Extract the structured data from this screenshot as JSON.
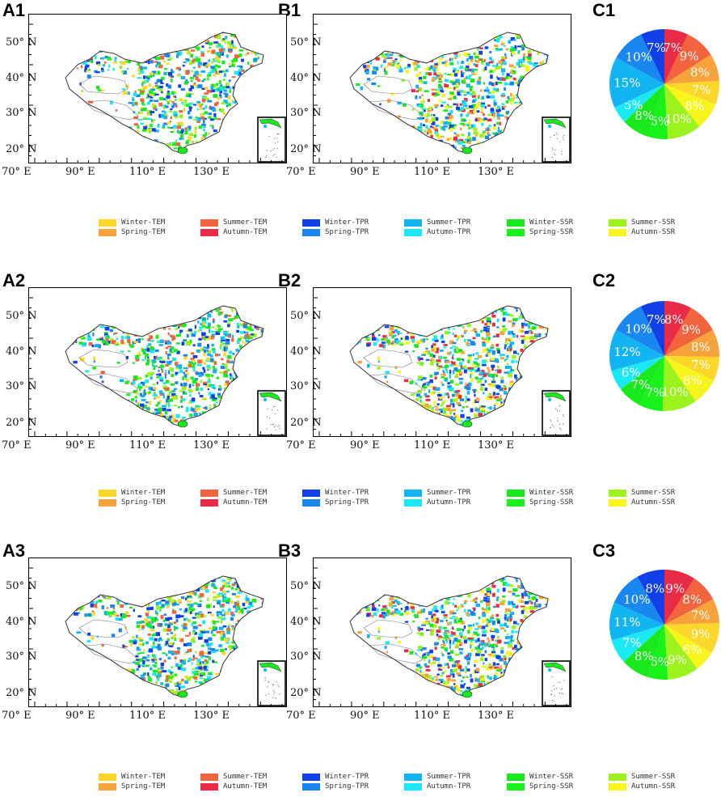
{
  "figure": {
    "panel_labels": [
      "A1",
      "B1",
      "C1",
      "A2",
      "B2",
      "C2",
      "A3",
      "B3",
      "C3"
    ],
    "y_ticks": [
      "50° N",
      "40° N",
      "30° N",
      "20° N"
    ],
    "x_ticks": [
      "70° E",
      "90° E",
      "110° E",
      "130° E"
    ]
  },
  "legend": [
    {
      "name": "Winter-TEM",
      "color": "#fcd72a"
    },
    {
      "name": "Spring-TEM",
      "color": "#f7a23a"
    },
    {
      "name": "Summer-TEM",
      "color": "#f2643e"
    },
    {
      "name": "Autumn-TEM",
      "color": "#ea2b45"
    },
    {
      "name": "Winter-TPR",
      "color": "#1140e8"
    },
    {
      "name": "Spring-TPR",
      "color": "#1a86f0"
    },
    {
      "name": "Summer-TPR",
      "color": "#12b4f2"
    },
    {
      "name": "Autumn-TPR",
      "color": "#1be8f5"
    },
    {
      "name": "Winter-SSR",
      "color": "#18e81c"
    },
    {
      "name": "Spring-SSR",
      "color": "#16f21a"
    },
    {
      "name": "Summer-SSR",
      "color": "#9cf21c"
    },
    {
      "name": "Autumn-SSR",
      "color": "#f7f51c"
    }
  ],
  "chart_data": [
    {
      "type": "pie",
      "panel": "C1",
      "slices": [
        {
          "name": "Autumn-TEM",
          "value": 7
        },
        {
          "name": "Summer-TEM",
          "value": 9
        },
        {
          "name": "Spring-TEM",
          "value": 8
        },
        {
          "name": "Winter-TEM",
          "value": 7
        },
        {
          "name": "Autumn-SSR",
          "value": 8
        },
        {
          "name": "Summer-SSR",
          "value": 10
        },
        {
          "name": "Spring-SSR",
          "value": 6
        },
        {
          "name": "Winter-SSR",
          "value": 8
        },
        {
          "name": "Autumn-TPR",
          "value": 5
        },
        {
          "name": "Summer-TPR",
          "value": 15
        },
        {
          "name": "Spring-TPR",
          "value": 10
        },
        {
          "name": "Winter-TPR",
          "value": 7
        }
      ]
    },
    {
      "type": "pie",
      "panel": "C2",
      "slices": [
        {
          "name": "Autumn-TEM",
          "value": 8
        },
        {
          "name": "Summer-TEM",
          "value": 9
        },
        {
          "name": "Spring-TEM",
          "value": 8
        },
        {
          "name": "Winter-TEM",
          "value": 7
        },
        {
          "name": "Autumn-SSR",
          "value": 8
        },
        {
          "name": "Summer-SSR",
          "value": 10
        },
        {
          "name": "Spring-SSR",
          "value": 7
        },
        {
          "name": "Winter-SSR",
          "value": 7
        },
        {
          "name": "Autumn-TPR",
          "value": 6
        },
        {
          "name": "Summer-TPR",
          "value": 12
        },
        {
          "name": "Spring-TPR",
          "value": 10
        },
        {
          "name": "Winter-TPR",
          "value": 7
        }
      ]
    },
    {
      "type": "pie",
      "panel": "C3",
      "slices": [
        {
          "name": "Autumn-TEM",
          "value": 9
        },
        {
          "name": "Summer-TEM",
          "value": 8
        },
        {
          "name": "Spring-TEM",
          "value": 7
        },
        {
          "name": "Winter-TEM",
          "value": 9
        },
        {
          "name": "Autumn-SSR",
          "value": 6
        },
        {
          "name": "Summer-SSR",
          "value": 9
        },
        {
          "name": "Spring-SSR",
          "value": 6
        },
        {
          "name": "Winter-SSR",
          "value": 8
        },
        {
          "name": "Autumn-TPR",
          "value": 7
        },
        {
          "name": "Summer-TPR",
          "value": 11
        },
        {
          "name": "Spring-TPR",
          "value": 10
        },
        {
          "name": "Winter-TPR",
          "value": 8
        }
      ]
    }
  ]
}
